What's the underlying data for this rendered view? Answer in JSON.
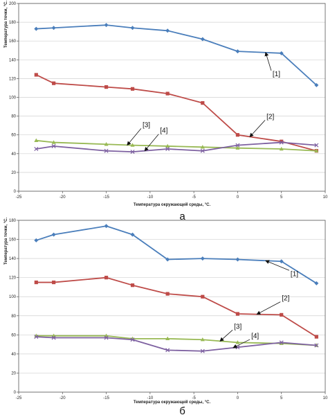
{
  "colors": {
    "series1": "#4a7ebb",
    "series2": "#be4b48",
    "series3": "#98b954",
    "series4": "#7d60a0",
    "grid": "#d0d0d0",
    "axis": "#555555"
  },
  "chart_data": [
    {
      "type": "line",
      "caption": "а",
      "xlabel": "Температура окружающей среды, °С.",
      "ylabel": "Температура точки, °С.",
      "xlim": [
        -25,
        10
      ],
      "ylim": [
        0,
        200
      ],
      "xticks": [
        -25,
        -20,
        -15,
        -10,
        -5,
        0,
        5,
        10
      ],
      "xtick_labels": [
        "-25",
        "-20",
        "-15",
        "-10",
        "-5",
        "0",
        "5",
        "10"
      ],
      "yticks": [
        0,
        20,
        40,
        60,
        80,
        100,
        120,
        140,
        160,
        180,
        200
      ],
      "ytick_labels": [
        "0",
        "20",
        "40",
        "60",
        "80",
        "100",
        "120",
        "140",
        "160",
        "180",
        "200"
      ],
      "grid": "horizontal",
      "series": [
        {
          "name": "[1]",
          "color_key": "series1",
          "marker": "diamond",
          "x": [
            -23,
            -21,
            -15,
            -12,
            -8,
            -4,
            0,
            5,
            9
          ],
          "y": [
            173,
            174,
            177,
            174,
            171,
            162,
            149,
            147,
            113
          ]
        },
        {
          "name": "[2]",
          "color_key": "series2",
          "marker": "square",
          "x": [
            -23,
            -21,
            -15,
            -12,
            -8,
            -4,
            0,
            5,
            9
          ],
          "y": [
            124,
            115,
            111,
            109,
            104,
            94,
            60,
            53,
            43
          ]
        },
        {
          "name": "[3]",
          "color_key": "series3",
          "marker": "triangle",
          "x": [
            -23,
            -21,
            -15,
            -12,
            -8,
            -4,
            0,
            5,
            9
          ],
          "y": [
            54,
            52,
            50,
            49,
            48,
            47,
            46,
            45,
            43
          ]
        },
        {
          "name": "[4]",
          "color_key": "series4",
          "marker": "x",
          "x": [
            -23,
            -21,
            -15,
            -12,
            -8,
            -4,
            0,
            5,
            9
          ],
          "y": [
            45,
            48,
            43,
            42,
            45,
            43,
            49,
            52,
            49
          ]
        }
      ],
      "annotations": [
        {
          "label": "[1]",
          "series": 0,
          "x": 3.2
        },
        {
          "label": "[2]",
          "series": 1,
          "x": 1.4
        },
        {
          "label": "[3]",
          "series": 2,
          "x": -12.6
        },
        {
          "label": "[4]",
          "series": 3,
          "x": -10.6
        }
      ]
    },
    {
      "type": "line",
      "caption": "б",
      "xlabel": "Температура окружающей среды, °С.",
      "ylabel": "Температура точки, °С.",
      "xlim": [
        -25,
        10
      ],
      "ylim": [
        0,
        180
      ],
      "xticks": [
        -25,
        -20,
        -15,
        -10,
        -5,
        0,
        5,
        10
      ],
      "xtick_labels": [
        "-25",
        "-20",
        "-15",
        "-10",
        "-5",
        "0",
        "5",
        "10"
      ],
      "yticks": [
        0,
        20,
        40,
        60,
        80,
        100,
        120,
        140,
        160,
        180
      ],
      "ytick_labels": [
        "0",
        "20",
        "40",
        "60",
        "80",
        "100",
        "120",
        "140",
        "160",
        "180"
      ],
      "grid": "horizontal",
      "series": [
        {
          "name": "[1]",
          "color_key": "series1",
          "marker": "diamond",
          "x": [
            -23,
            -21,
            -15,
            -12,
            -8,
            -4,
            0,
            5,
            9
          ],
          "y": [
            159,
            165,
            174,
            165,
            139,
            140,
            139,
            137,
            114
          ]
        },
        {
          "name": "[2]",
          "color_key": "series2",
          "marker": "square",
          "x": [
            -23,
            -21,
            -15,
            -12,
            -8,
            -4,
            0,
            5,
            9
          ],
          "y": [
            115,
            115,
            120,
            112,
            103,
            100,
            82,
            81,
            58
          ]
        },
        {
          "name": "[3]",
          "color_key": "series3",
          "marker": "triangle",
          "x": [
            -23,
            -21,
            -15,
            -12,
            -8,
            -4,
            0,
            5,
            9
          ],
          "y": [
            59,
            59,
            59,
            56,
            56,
            55,
            52,
            51,
            49
          ]
        },
        {
          "name": "[4]",
          "color_key": "series4",
          "marker": "x",
          "x": [
            -23,
            -21,
            -15,
            -12,
            -8,
            -4,
            0,
            5,
            9
          ],
          "y": [
            58,
            57,
            57,
            55,
            44,
            43,
            47,
            52,
            49
          ]
        }
      ],
      "annotations": [
        {
          "label": "[1]",
          "series": 0,
          "x": 3.2
        },
        {
          "label": "[2]",
          "series": 1,
          "x": 2.2
        },
        {
          "label": "[3]",
          "series": 2,
          "x": -2.0
        },
        {
          "label": "[4]",
          "series": 3,
          "x": -0.5
        }
      ]
    }
  ]
}
